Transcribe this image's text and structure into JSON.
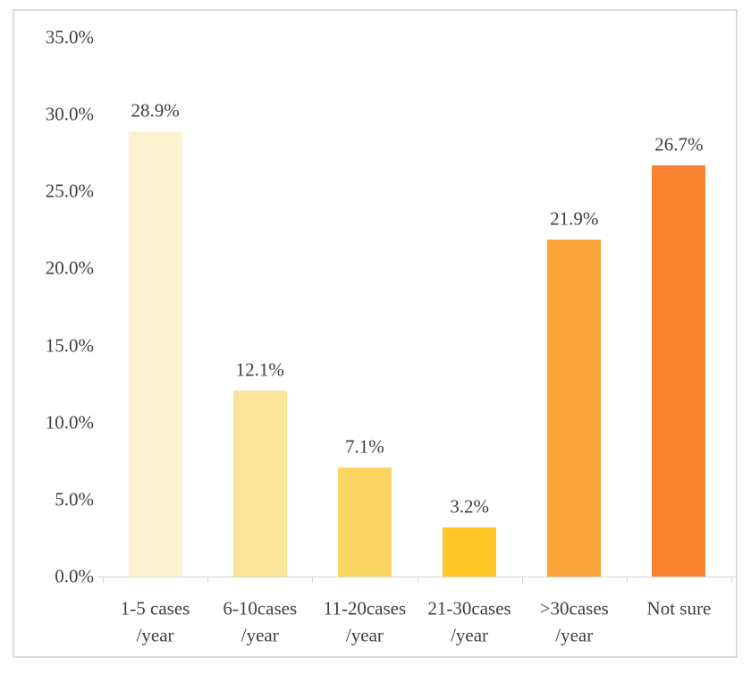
{
  "chart_data": {
    "type": "bar",
    "title": "",
    "xlabel": "",
    "ylabel": "",
    "categories": [
      {
        "lines": [
          "1-5 cases",
          "/year"
        ]
      },
      {
        "lines": [
          "6-10cases",
          "/year"
        ]
      },
      {
        "lines": [
          "11-20cases",
          "/year"
        ]
      },
      {
        "lines": [
          "21-30cases",
          "/year"
        ]
      },
      {
        "lines": [
          ">30cases",
          "/year"
        ]
      },
      {
        "lines": [
          "Not sure"
        ]
      }
    ],
    "values": [
      28.9,
      12.1,
      7.1,
      3.2,
      21.9,
      26.7
    ],
    "value_labels": [
      "28.9%",
      "12.1%",
      "7.1%",
      "3.2%",
      "21.9%",
      "26.7%"
    ],
    "bar_colors": [
      "#FDF2D2",
      "#FCE59B",
      "#FCD662",
      "#FEC726",
      "#FAA338",
      "#F8822F"
    ],
    "ylim": [
      0,
      35
    ],
    "y_ticks": [
      {
        "label": "35.0%",
        "value": 35
      },
      {
        "label": "30.0%",
        "value": 30
      },
      {
        "label": "25.0%",
        "value": 25
      },
      {
        "label": "20.0%",
        "value": 20
      },
      {
        "label": "15.0%",
        "value": 15
      },
      {
        "label": "10.0%",
        "value": 10
      },
      {
        "label": "5.0%",
        "value": 5
      },
      {
        "label": "0.0%",
        "value": 0
      }
    ],
    "grid": false,
    "legend": "none",
    "data_labels": true,
    "axis_color": "#D6D6D6",
    "frame_color": "#DCDCDC",
    "text_color": "#404040"
  }
}
